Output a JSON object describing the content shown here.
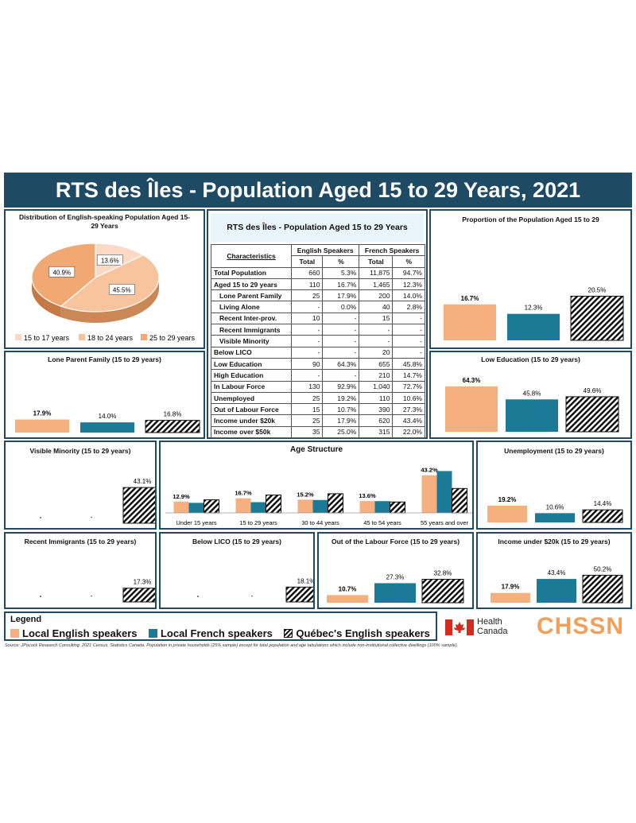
{
  "title": "RTS des Îles - Population Aged 15 to 29 Years, 2021",
  "colors": {
    "english": "#f6b07f",
    "french": "#1b7a95",
    "quebec": "hatched",
    "navy": "#1f4a63"
  },
  "pie": {
    "title": "Distribution of English-speaking Population Aged 15-29 Years",
    "legend": [
      "15 to 17 years",
      "18 to 24 years",
      "25 to 29 years"
    ]
  },
  "table": {
    "title": "RTS des Îles - Population Aged 15 to 29 Years",
    "head_char": "Characteristics",
    "head_eng": "English Speakers",
    "head_fr": "French Speakers",
    "head_total": "Total",
    "head_pct": "%",
    "rows": [
      {
        "label": "Total Population",
        "e_total": "660",
        "e_pct": "5.3%",
        "f_total": "11,875",
        "f_pct": "94.7%"
      },
      {
        "label": "Aged 15 to 29 years",
        "e_total": "110",
        "e_pct": "16.7%",
        "f_total": "1,465",
        "f_pct": "12.3%"
      },
      {
        "label": "Lone Parent Family",
        "e_total": "25",
        "e_pct": "17.9%",
        "f_total": "200",
        "f_pct": "14.0%"
      },
      {
        "label": "Living Alone",
        "e_total": "-",
        "e_pct": "0.0%",
        "f_total": "40",
        "f_pct": "2.8%"
      },
      {
        "label": "Recent Inter-prov.",
        "e_total": "10",
        "e_pct": "-",
        "f_total": "15",
        "f_pct": "-"
      },
      {
        "label": "Recent Immigrants",
        "e_total": "-",
        "e_pct": "-",
        "f_total": "-",
        "f_pct": "-"
      },
      {
        "label": "Visible Minority",
        "e_total": "-",
        "e_pct": "-",
        "f_total": "-",
        "f_pct": "-"
      },
      {
        "label": "Below LICO",
        "e_total": "-",
        "e_pct": "-",
        "f_total": "20",
        "f_pct": "-"
      },
      {
        "label": "Low Education",
        "e_total": "90",
        "e_pct": "64.3%",
        "f_total": "655",
        "f_pct": "45.8%"
      },
      {
        "label": "High Education",
        "e_total": "-",
        "e_pct": "-",
        "f_total": "210",
        "f_pct": "14.7%"
      },
      {
        "label": "In Labour Force",
        "e_total": "130",
        "e_pct": "92.9%",
        "f_total": "1,040",
        "f_pct": "72.7%"
      },
      {
        "label": "Unemployed",
        "e_total": "25",
        "e_pct": "19.2%",
        "f_total": "110",
        "f_pct": "10.6%"
      },
      {
        "label": "Out of Labour Force",
        "e_total": "15",
        "e_pct": "10.7%",
        "f_total": "390",
        "f_pct": "27.3%"
      },
      {
        "label": "Income under $20k",
        "e_total": "25",
        "e_pct": "17.9%",
        "f_total": "620",
        "f_pct": "43.4%"
      },
      {
        "label": "Income over $50k",
        "e_total": "35",
        "e_pct": "25.0%",
        "f_total": "315",
        "f_pct": "22.0%"
      }
    ]
  },
  "legend": {
    "title": "Legend",
    "items": [
      "Local English speakers",
      "Local French speakers",
      "Québec's English speakers"
    ]
  },
  "logos": {
    "health_line1": "Health",
    "health_line2": "Canada",
    "chssn": "CHSSN"
  },
  "source": "Source: JPocock Research Consulting. 2021 Census. Statistics Canada. Population in private households (25% sample) except for total population and age tabulations which include non-institutional collective dwellings (100% sample).",
  "chart_data": [
    {
      "id": "pie",
      "type": "pie",
      "title": "Distribution of English-speaking Population Aged 15-29 Years",
      "categories": [
        "15 to 17 years",
        "18 to 24 years",
        "25 to 29 years"
      ],
      "values": [
        13.6,
        45.5,
        40.9
      ],
      "labels": [
        "13.6%",
        "45.5%",
        "40.9%"
      ]
    },
    {
      "id": "proportion",
      "type": "bar",
      "title": "Proportion of the Population Aged 15 to 29",
      "values": [
        16.7,
        12.3,
        20.5
      ],
      "labels": [
        "16.7%",
        "12.3%",
        "20.5%"
      ],
      "ymax": 24
    },
    {
      "id": "lone",
      "type": "bar",
      "title": "Lone Parent Family (15 to 29 years)",
      "values": [
        17.9,
        14.0,
        16.8
      ],
      "labels": [
        "17.9%",
        "14.0%",
        "16.8%"
      ],
      "ymax": 24
    },
    {
      "id": "lowedu",
      "type": "bar",
      "title": "Low Education (15 to 29 years)",
      "values": [
        64.3,
        45.8,
        49.6
      ],
      "labels": [
        "64.3%",
        "45.8%",
        "49.6%"
      ],
      "ymax": 72
    },
    {
      "id": "visible",
      "type": "bar",
      "title": "Visible Minority (15 to 29 years)",
      "values": [
        0,
        0,
        43.1
      ],
      "labels": [
        "-",
        "-",
        "43.1%"
      ],
      "ymax": 48
    },
    {
      "id": "age",
      "type": "bar",
      "title": "Age Structure",
      "categories": [
        "Under 15 years",
        "15 to 29 years",
        "30 to 44 years",
        "45 to 54 years",
        "55 years and over"
      ],
      "series": [
        {
          "name": "Local English speakers",
          "values": [
            12.9,
            16.7,
            15.2,
            13.6,
            43.2
          ]
        },
        {
          "name": "Local French speakers",
          "values": [
            11.5,
            12.3,
            14.8,
            13.5,
            48.0
          ]
        },
        {
          "name": "Québec's English speakers",
          "values": [
            15.0,
            20.5,
            22.0,
            12.5,
            28.0
          ]
        }
      ],
      "labels": [
        "12.9%",
        "16.7%",
        "15.2%",
        "13.6%",
        "43.2%"
      ],
      "ymax": 52
    },
    {
      "id": "unemp",
      "type": "bar",
      "title": "Unemployment (15 to 29 years)",
      "values": [
        19.2,
        10.6,
        14.4
      ],
      "labels": [
        "19.2%",
        "10.6%",
        "14.4%"
      ],
      "ymax": 30
    },
    {
      "id": "immig",
      "type": "bar",
      "title": "Recent Immigrants (15 to 29 years)",
      "values": [
        0,
        0,
        17.3
      ],
      "labels": [
        "-",
        "-",
        "17.3%"
      ],
      "ymax": 30
    },
    {
      "id": "lico",
      "type": "bar",
      "title": "Below LICO (15 to 29 years)",
      "values": [
        0,
        0,
        18.1
      ],
      "labels": [
        "-",
        "-",
        "18.1%"
      ],
      "ymax": 30
    },
    {
      "id": "outlf",
      "type": "bar",
      "title": "Out of the Labour Force (15 to 29 years)",
      "values": [
        10.7,
        27.3,
        32.8
      ],
      "labels": [
        "10.7%",
        "27.3%",
        "32.8%"
      ],
      "ymax": 40
    },
    {
      "id": "income",
      "type": "bar",
      "title": "Income under $20k (15 to 29 years)",
      "values": [
        17.9,
        43.4,
        50.2
      ],
      "labels": [
        "17.9%",
        "43.4%",
        "50.2%"
      ],
      "ymax": 58
    }
  ]
}
